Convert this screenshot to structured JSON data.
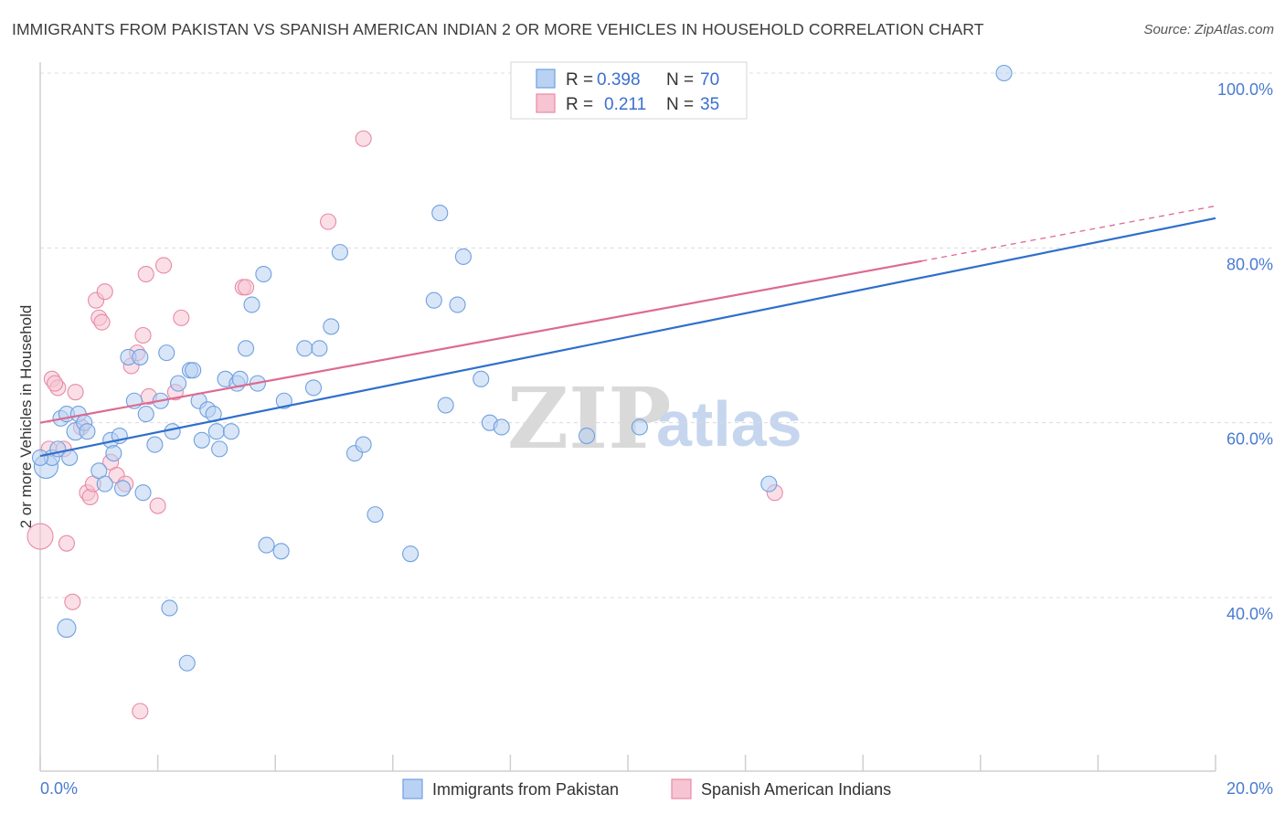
{
  "header": {
    "title": "IMMIGRANTS FROM PAKISTAN VS SPANISH AMERICAN INDIAN 2 OR MORE VEHICLES IN HOUSEHOLD CORRELATION CHART",
    "source": "Source: ZipAtlas.com"
  },
  "legend": {
    "row1": {
      "r_label": "R =",
      "r_value": "0.398",
      "n_label": "N =",
      "n_value": "70"
    },
    "row2": {
      "r_label": "R =",
      "r_value": "0.211",
      "n_label": "N =",
      "n_value": "35"
    }
  },
  "watermark": {
    "zip": "ZIP",
    "atlas": "atlas"
  },
  "colors": {
    "blue": "#6fa0e0",
    "blue_fill": "#b9d1f3",
    "pink": "#e88aa6",
    "pink_fill": "#f6c4d3",
    "blue_line": "#2f6fcc",
    "pink_line": "#dd6a92",
    "axis_text": "#4a7bd0"
  },
  "chart_data": {
    "type": "scatter",
    "title": "IMMIGRANTS FROM PAKISTAN VS SPANISH AMERICAN INDIAN 2 OR MORE VEHICLES IN HOUSEHOLD CORRELATION CHART",
    "xlabel": "",
    "ylabel": "2 or more Vehicles in Household",
    "xlim": [
      0,
      20
    ],
    "ylim": [
      22,
      102
    ],
    "x_tick_labels": [
      "0.0%",
      "20.0%"
    ],
    "y_ticks": [
      40,
      60,
      80,
      100
    ],
    "y_tick_labels": [
      "40.0%",
      "60.0%",
      "80.0%",
      "100.0%"
    ],
    "grid": true,
    "legend_position": "top-center",
    "series": [
      {
        "name": "Immigrants from Pakistan",
        "color": "#6fa0e0",
        "trend": {
          "x": [
            0,
            20
          ],
          "y": [
            56.2,
            83.4
          ]
        },
        "points": [
          [
            0.1,
            55
          ],
          [
            0.2,
            56
          ],
          [
            0.3,
            57
          ],
          [
            0.35,
            60.5
          ],
          [
            0.45,
            61
          ],
          [
            0.5,
            56
          ],
          [
            0.6,
            59
          ],
          [
            0.65,
            61
          ],
          [
            0.75,
            60
          ],
          [
            0.8,
            59
          ],
          [
            1.0,
            54.5
          ],
          [
            1.1,
            53
          ],
          [
            1.2,
            58
          ],
          [
            1.25,
            56.5
          ],
          [
            1.35,
            58.5
          ],
          [
            1.4,
            52.5
          ],
          [
            1.5,
            67.5
          ],
          [
            1.6,
            62.5
          ],
          [
            1.7,
            67.5
          ],
          [
            1.75,
            52
          ],
          [
            1.8,
            61
          ],
          [
            1.95,
            57.5
          ],
          [
            2.05,
            62.5
          ],
          [
            2.15,
            68
          ],
          [
            2.2,
            38.8
          ],
          [
            2.25,
            59
          ],
          [
            2.35,
            64.5
          ],
          [
            2.5,
            32.5
          ],
          [
            2.55,
            66
          ],
          [
            2.6,
            66
          ],
          [
            2.7,
            62.5
          ],
          [
            2.75,
            58
          ],
          [
            2.85,
            61.5
          ],
          [
            2.95,
            61
          ],
          [
            3.0,
            59
          ],
          [
            3.05,
            57
          ],
          [
            3.15,
            65
          ],
          [
            3.25,
            59
          ],
          [
            3.35,
            64.5
          ],
          [
            3.4,
            65
          ],
          [
            3.5,
            68.5
          ],
          [
            3.6,
            73.5
          ],
          [
            3.7,
            64.5
          ],
          [
            3.8,
            77
          ],
          [
            3.85,
            46
          ],
          [
            4.1,
            45.3
          ],
          [
            4.15,
            62.5
          ],
          [
            4.5,
            68.5
          ],
          [
            4.65,
            64
          ],
          [
            4.75,
            68.5
          ],
          [
            4.95,
            71
          ],
          [
            5.1,
            79.5
          ],
          [
            5.35,
            56.5
          ],
          [
            5.5,
            57.5
          ],
          [
            5.7,
            49.5
          ],
          [
            6.3,
            45
          ],
          [
            6.7,
            74
          ],
          [
            6.8,
            84
          ],
          [
            6.9,
            62
          ],
          [
            7.1,
            73.5
          ],
          [
            7.2,
            79
          ],
          [
            7.5,
            65
          ],
          [
            7.65,
            60
          ],
          [
            7.85,
            59.5
          ],
          [
            9.3,
            58.5
          ],
          [
            10.2,
            59.5
          ],
          [
            12.4,
            53
          ],
          [
            16.4,
            100
          ],
          [
            0.0,
            56
          ],
          [
            0.45,
            36.5
          ]
        ]
      },
      {
        "name": "Spanish American Indians",
        "color": "#e88aa6",
        "trend": {
          "x": [
            0,
            15
          ],
          "y": [
            60,
            78.5
          ]
        },
        "trend_dashed": {
          "x": [
            15,
            20
          ],
          "y": [
            78.5,
            84.8
          ]
        },
        "points": [
          [
            0.0,
            47
          ],
          [
            0.15,
            57
          ],
          [
            0.2,
            65
          ],
          [
            0.3,
            64
          ],
          [
            0.4,
            57
          ],
          [
            0.45,
            46.2
          ],
          [
            0.55,
            39.5
          ],
          [
            0.6,
            63.5
          ],
          [
            0.7,
            59.5
          ],
          [
            0.8,
            52
          ],
          [
            0.85,
            51.5
          ],
          [
            0.9,
            53
          ],
          [
            0.95,
            74
          ],
          [
            1.0,
            72
          ],
          [
            1.05,
            71.5
          ],
          [
            1.1,
            75
          ],
          [
            1.2,
            55.5
          ],
          [
            1.3,
            54
          ],
          [
            1.45,
            53
          ],
          [
            1.55,
            66.5
          ],
          [
            1.65,
            68
          ],
          [
            1.7,
            27
          ],
          [
            1.75,
            70
          ],
          [
            1.8,
            77
          ],
          [
            1.85,
            63
          ],
          [
            2.0,
            50.5
          ],
          [
            2.1,
            78
          ],
          [
            2.3,
            63.5
          ],
          [
            2.4,
            72
          ],
          [
            3.45,
            75.5
          ],
          [
            3.5,
            75.5
          ],
          [
            4.9,
            83
          ],
          [
            5.5,
            92.5
          ],
          [
            12.5,
            52
          ],
          [
            0.25,
            64.5
          ]
        ]
      }
    ]
  },
  "bottom_legend": {
    "item1": "Immigrants from Pakistan",
    "item2": "Spanish American Indians"
  }
}
